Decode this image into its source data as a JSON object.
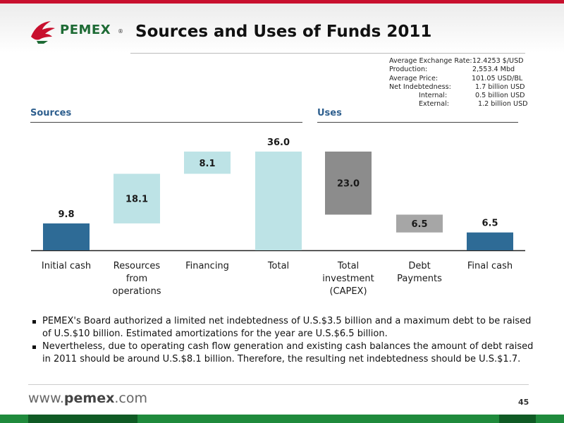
{
  "header": {
    "logo_text": "PEMEX",
    "logo_reg": "®",
    "title": "Sources and Uses of Funds 2011"
  },
  "info": [
    {
      "label": "Average Exchange Rate:",
      "value": "12.4253 $/USD",
      "indent": false
    },
    {
      "label": "Production:",
      "value": "2,553.4 Mbd",
      "indent": false
    },
    {
      "label": "Average Price:",
      "value": "101.05 USD/BL",
      "indent": false
    },
    {
      "label": "Net Indebtedness:",
      "value": "1.7 billion USD",
      "indent": false
    },
    {
      "label": "Internal:",
      "value": "0.5 billion USD",
      "indent": true
    },
    {
      "label": "External:",
      "value": "1.2 billion USD",
      "indent": true
    }
  ],
  "sections": {
    "sources": "Sources",
    "uses": "Uses"
  },
  "chart_data": {
    "type": "bar",
    "subtype": "waterfall",
    "categories": [
      "Initial cash",
      "Resources from operations",
      "Financing",
      "Total",
      "Total investment (CAPEX)",
      "Debt Payments",
      "Final cash"
    ],
    "category_lines": [
      [
        "Initial cash"
      ],
      [
        "Resources",
        "from",
        "operations"
      ],
      [
        "Financing"
      ],
      [
        "Total"
      ],
      [
        "Total",
        "investment",
        "(CAPEX)"
      ],
      [
        "Debt",
        "Payments"
      ],
      [
        "Final cash"
      ]
    ],
    "values": [
      9.8,
      18.1,
      8.1,
      36.0,
      23.0,
      6.5,
      6.5
    ],
    "labels": [
      "9.8",
      "18.1",
      "8.1",
      "36.0",
      "23.0",
      "6.5",
      "6.5"
    ],
    "ranges": [
      [
        0,
        9.8
      ],
      [
        9.8,
        27.9
      ],
      [
        27.9,
        36.0
      ],
      [
        0,
        36.0
      ],
      [
        13.0,
        36.0
      ],
      [
        6.5,
        13.0
      ],
      [
        0,
        6.5
      ]
    ],
    "label_position": [
      "above",
      "inside",
      "inside",
      "above",
      "inside",
      "inside",
      "above"
    ],
    "colors": [
      "#2e6b96",
      "#bde3e6",
      "#bde3e6",
      "#bde3e6",
      "#8c8c8c",
      "#a6a6a6",
      "#2e6b96"
    ],
    "ylim": [
      0,
      36.0
    ]
  },
  "bullets": [
    "PEMEX's Board authorized a limited net indebtedness of U.S.$3.5 billion and a maximum debt to be raised of U.S.$10 billion. Estimated amortizations for the year are U.S.$6.5 billion.",
    "Nevertheless, due to operating cash flow generation and existing cash balances the amount of debt raised in 2011 should be around U.S.$8.1 billion. Therefore, the resulting net indebtedness should be U.S.$1.7."
  ],
  "footer": {
    "url_prefix": "www.",
    "url_brand": "pemex",
    "url_suffix": ".com",
    "page": "45"
  }
}
